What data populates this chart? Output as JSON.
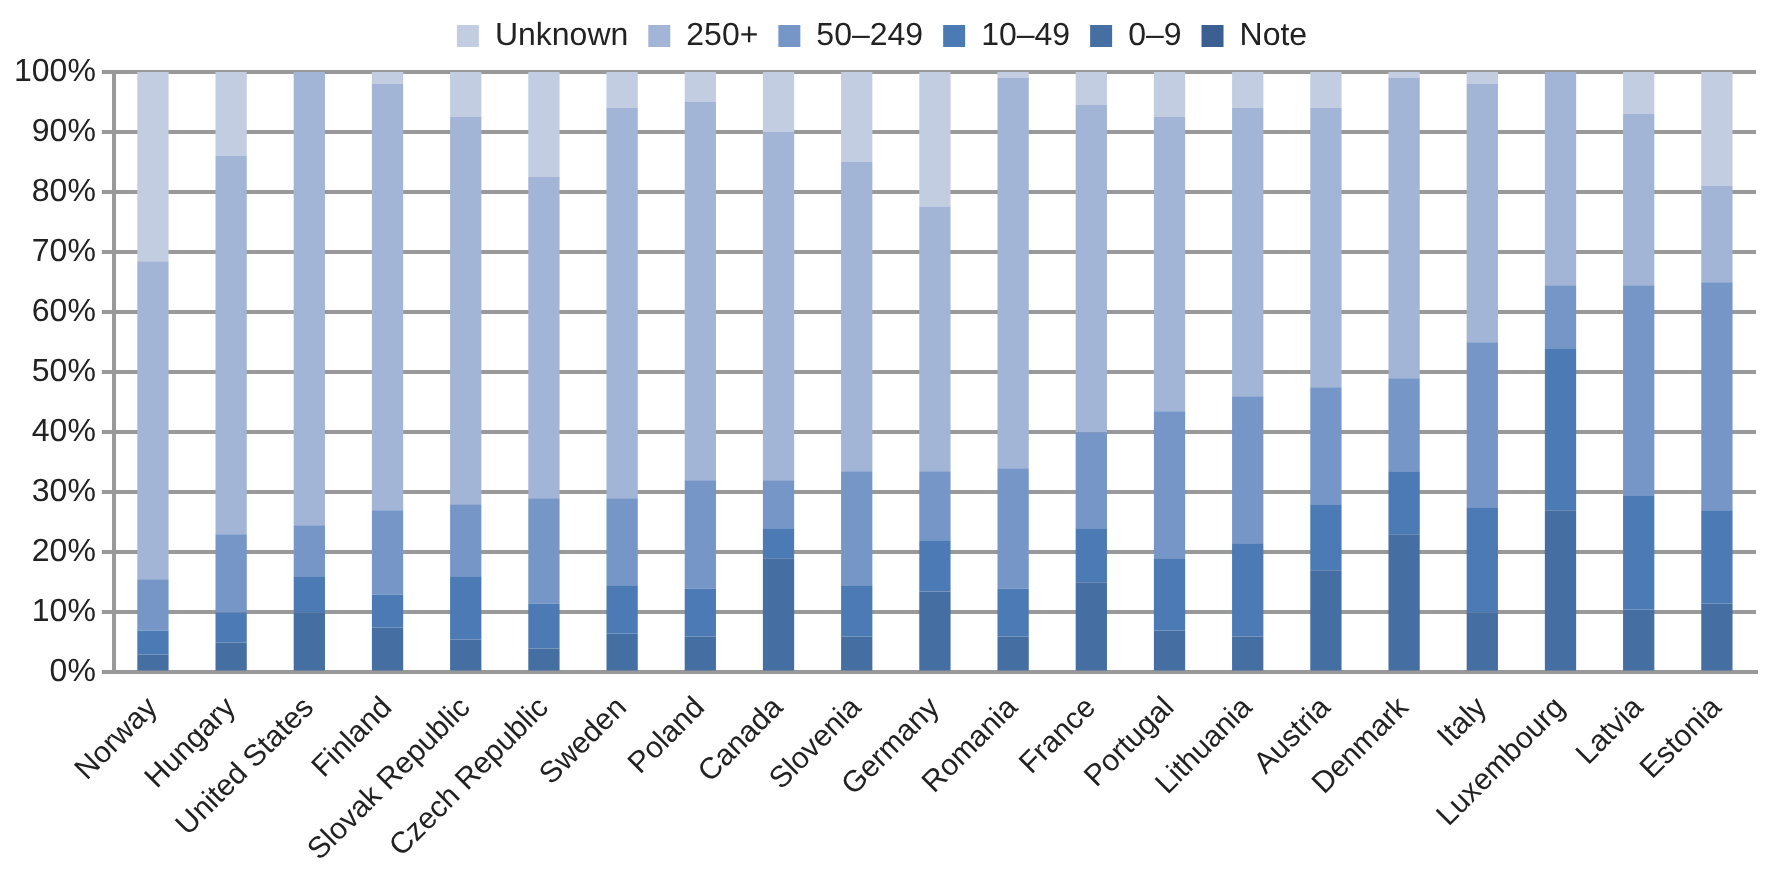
{
  "chart_data": {
    "type": "bar",
    "stacked": true,
    "legend": "top",
    "grid": "y",
    "categories": [
      "Norway",
      "Hungary",
      "United States",
      "Finland",
      "Slovak Republic",
      "Czech Republic",
      "Sweden",
      "Poland",
      "Canada",
      "Slovenia",
      "Germany",
      "Romania",
      "France",
      "Portugal",
      "Lithuania",
      "Austria",
      "Denmark",
      "Italy",
      "Luxembourg",
      "Latvia",
      "Estonia"
    ],
    "ylim": [
      0,
      100
    ],
    "yticks": [
      {
        "value": 0,
        "label": "0%"
      },
      {
        "value": 10,
        "label": "10%"
      },
      {
        "value": 20,
        "label": "20%"
      },
      {
        "value": 30,
        "label": "30%"
      },
      {
        "value": 40,
        "label": "40%"
      },
      {
        "value": 50,
        "label": "50%"
      },
      {
        "value": 60,
        "label": "60%"
      },
      {
        "value": 70,
        "label": "70%"
      },
      {
        "value": 80,
        "label": "80%"
      },
      {
        "value": 90,
        "label": "90%"
      },
      {
        "value": 100,
        "label": "100%"
      }
    ],
    "series": [
      {
        "name": "Note",
        "color": "#3b5f92",
        "values": [
          0,
          0,
          0,
          0,
          0,
          0,
          0,
          0,
          0,
          0,
          0,
          0,
          0,
          0,
          0,
          0,
          0,
          0,
          0,
          0,
          0
        ]
      },
      {
        "name": "0–9",
        "color": "#456ea3",
        "values": [
          3,
          5,
          10,
          7.5,
          5.5,
          4,
          6.5,
          6,
          19,
          6,
          13.5,
          6,
          15,
          7,
          6,
          17,
          23,
          10,
          27,
          10.5,
          11.5
        ]
      },
      {
        "name": "10–49",
        "color": "#4c7ab4",
        "values": [
          4,
          5,
          6,
          5.5,
          10.5,
          7.5,
          8,
          8,
          5,
          8.5,
          8.5,
          8,
          9,
          12,
          15.5,
          11,
          10.5,
          17.5,
          27,
          19,
          15.5
        ]
      },
      {
        "name": "50–249",
        "color": "#7596c6",
        "values": [
          8.5,
          13,
          8.5,
          14,
          12,
          17.5,
          14.5,
          18,
          8,
          19,
          11.5,
          20,
          16,
          24.5,
          24.5,
          19.5,
          15.5,
          27.5,
          10.5,
          35,
          38
        ]
      },
      {
        "name": "250+",
        "color": "#a3b5d6",
        "values": [
          53,
          63,
          75.5,
          71,
          64.5,
          53.5,
          65,
          63,
          58,
          51.5,
          44,
          65,
          54.5,
          49,
          48,
          46.5,
          50,
          43,
          35.5,
          28.5,
          16
        ]
      },
      {
        "name": "Unknown",
        "color": "#c3cde2",
        "values": [
          31.5,
          14,
          0,
          2,
          7.5,
          17.5,
          6,
          5,
          10,
          15,
          22.5,
          1,
          5.5,
          7.5,
          6,
          6,
          1,
          2,
          0,
          7,
          19
        ]
      }
    ]
  }
}
